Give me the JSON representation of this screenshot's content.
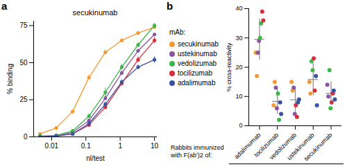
{
  "chart_data": [
    {
      "panel": "a",
      "type": "line",
      "title": "secukinumab",
      "x_label": "nl/test",
      "y_label": "% binding",
      "log": "x",
      "marker": "circle",
      "x": [
        0.0046,
        0.0137,
        0.041,
        0.123,
        0.37,
        1.11,
        3.33,
        10
      ],
      "xlim": [
        0.003,
        12
      ],
      "xticks": [
        0.01,
        0.1,
        1,
        10
      ],
      "ylim": [
        0,
        78
      ],
      "yticks": [
        0,
        25,
        50,
        75
      ],
      "series": [
        {
          "name": "secukinumab",
          "color": "#f39a32",
          "values": [
            2,
            6,
            17,
            40,
            57,
            65,
            70,
            74
          ],
          "errors": [
            0.3,
            0.5,
            1,
            1.5,
            1.5,
            1,
            1,
            1
          ]
        },
        {
          "name": "ustekinumab",
          "color": "#8c55a2",
          "values": [
            0,
            1,
            3,
            11,
            26,
            43,
            58,
            69
          ],
          "errors": [
            0.2,
            0.2,
            0.4,
            1,
            1.5,
            1.5,
            1,
            1
          ]
        },
        {
          "name": "vedolizumab",
          "color": "#3cb54a",
          "values": [
            0.5,
            1,
            4,
            14,
            30,
            47,
            62,
            75
          ],
          "errors": [
            0.2,
            0.3,
            0.5,
            1.5,
            3,
            2,
            1.5,
            1.5
          ]
        },
        {
          "name": "tocilizumab",
          "color": "#d62f3a",
          "values": [
            0,
            0.5,
            2,
            8,
            20,
            36,
            52,
            65
          ],
          "errors": [
            0.1,
            0.2,
            0.3,
            1,
            1.5,
            1.5,
            2,
            2
          ]
        },
        {
          "name": "adalimumab",
          "color": "#3a52a3",
          "values": [
            0,
            0.5,
            2,
            9,
            22,
            37,
            47,
            52
          ],
          "errors": [
            0.1,
            0.2,
            0.3,
            1,
            1.5,
            1.5,
            1.5,
            2
          ]
        }
      ]
    },
    {
      "panel": "b",
      "type": "scatter",
      "legend_title": "mAb:",
      "legend": "left",
      "x_label": "Rabbits immunized with F(ab')2 of:",
      "y_label": "% cross-reactivity",
      "categories": [
        "adalimumab",
        "tocilizumab",
        "vedolizumab",
        "ustekinumab",
        "secukinumab"
      ],
      "ylim": [
        0,
        40
      ],
      "yticks": [
        0,
        10,
        20,
        30,
        40
      ],
      "series": [
        {
          "name": "secukinumab",
          "color": "#f39a32",
          "values": [
            [
              25,
              17
            ],
            [
              7,
              15
            ],
            [
              15,
              12
            ],
            [
              15,
              11
            ],
            null
          ]
        },
        {
          "name": "ustekinumab",
          "color": "#8c55a2",
          "values": [
            [
              25,
              29
            ],
            [
              13,
              6
            ],
            [
              13,
              4
            ],
            null,
            [
              14,
              10
            ]
          ]
        },
        {
          "name": "vedolizumab",
          "color": "#3cb54a",
          "values": [
            [
              30,
              35
            ],
            [
              11,
              2
            ],
            null,
            [
              22,
              19
            ],
            [
              19,
              6
            ]
          ]
        },
        {
          "name": "tocilizumab",
          "color": "#d62f3a",
          "values": [
            [
              39,
              36
            ],
            null,
            [
              7,
              3
            ],
            [
              23,
              12
            ],
            [
              8,
              11
            ]
          ]
        },
        {
          "name": "adalimumab",
          "color": "#3a52a3",
          "values": [
            null,
            [
              8,
              4
            ],
            [
              8,
              9
            ],
            [
              17,
              7
            ],
            [
              12,
              9
            ]
          ]
        }
      ],
      "means": [
        29.5,
        8.3,
        8.9,
        15.8,
        11.1
      ],
      "sd": [
        7,
        4.3,
        4.3,
        5.5,
        4
      ]
    }
  ]
}
